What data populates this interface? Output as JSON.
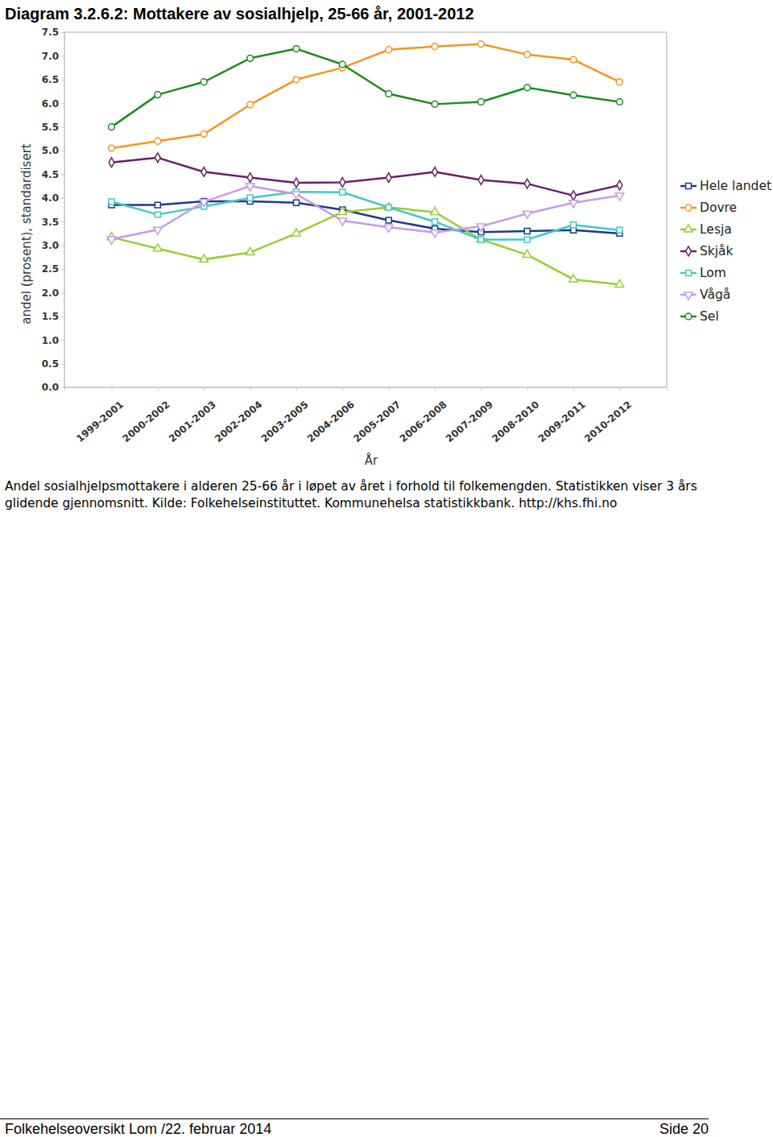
{
  "chart_data": {
    "type": "line",
    "title": "Diagram 3.2.6.2: Mottakere av sosialhjelp, 25-66 år, 2001-2012",
    "caption": "Andel sosialhjelpsmottakere i alderen 25-66 år i løpet av året i forhold til folkemengden. Statistikken viser 3 års glidende gjennomsnitt.  Kilde: Folkehelseinstituttet. Kommunehelsa statistikkbank. http://khs.fhi.no",
    "x_label": "År",
    "y_label": "andel (prosent), standardisert",
    "categories": [
      "1999-2001",
      "2000-2002",
      "2001-2003",
      "2002-2004",
      "2003-2005",
      "2004-2006",
      "2005-2007",
      "2006-2008",
      "2007-2009",
      "2008-2010",
      "2009-2011",
      "2010-2012"
    ],
    "series": [
      {
        "name": "Hele landet",
        "color": "#1c3a8c",
        "marker": "square",
        "values": [
          3.85,
          3.85,
          3.93,
          3.93,
          3.9,
          3.75,
          3.53,
          3.35,
          3.28,
          3.3,
          3.32,
          3.25
        ]
      },
      {
        "name": "Dovre",
        "color": "#f7941d",
        "marker": "circle",
        "values": [
          5.05,
          5.2,
          5.35,
          5.97,
          6.5,
          6.75,
          7.13,
          7.2,
          7.25,
          7.03,
          6.92,
          6.45
        ]
      },
      {
        "name": "Lesja",
        "color": "#9acd32",
        "marker": "triangle",
        "values": [
          3.17,
          2.93,
          2.7,
          2.85,
          3.25,
          3.7,
          3.8,
          3.7,
          3.12,
          2.8,
          2.28,
          2.17
        ]
      },
      {
        "name": "Skjåk",
        "color": "#6b1f6b",
        "marker": "diamond",
        "values": [
          4.75,
          4.85,
          4.55,
          4.43,
          4.32,
          4.33,
          4.43,
          4.55,
          4.38,
          4.3,
          4.05,
          4.27
        ]
      },
      {
        "name": "Lom",
        "color": "#40c8c8",
        "marker": "square",
        "values": [
          3.92,
          3.65,
          3.82,
          4.0,
          4.13,
          4.12,
          3.8,
          3.5,
          3.12,
          3.12,
          3.43,
          3.32
        ]
      },
      {
        "name": "Vågå",
        "color": "#c39be8",
        "marker": "triangle-down",
        "values": [
          3.13,
          3.33,
          3.92,
          4.25,
          4.08,
          3.52,
          3.38,
          3.27,
          3.4,
          3.67,
          3.9,
          4.05
        ]
      },
      {
        "name": "Sel",
        "color": "#1e8c1e",
        "marker": "circle",
        "values": [
          5.5,
          6.18,
          6.45,
          6.95,
          7.15,
          6.82,
          6.2,
          5.98,
          6.03,
          6.33,
          6.17,
          6.03
        ]
      }
    ],
    "ylim": [
      0,
      7.5
    ],
    "yticks": [
      {
        "value": 0,
        "label": "0.0"
      },
      0.5,
      {
        "value": 1,
        "label": "1.0"
      },
      1.5,
      {
        "value": 2,
        "label": "2.0"
      },
      2.5,
      {
        "value": 3,
        "label": "3.0"
      },
      3.5,
      {
        "value": 4,
        "label": "4.0"
      },
      4.5,
      {
        "value": 5,
        "label": "5.0"
      },
      5.5,
      {
        "value": 6,
        "label": "6.0"
      },
      6.5,
      {
        "value": 7,
        "label": "7.0"
      },
      7.5
    ],
    "grid": false,
    "legend": "right"
  },
  "page": {
    "footer": "Folkehelseoversikt Lom /22. februar 2014",
    "page_number": "Side 20"
  }
}
